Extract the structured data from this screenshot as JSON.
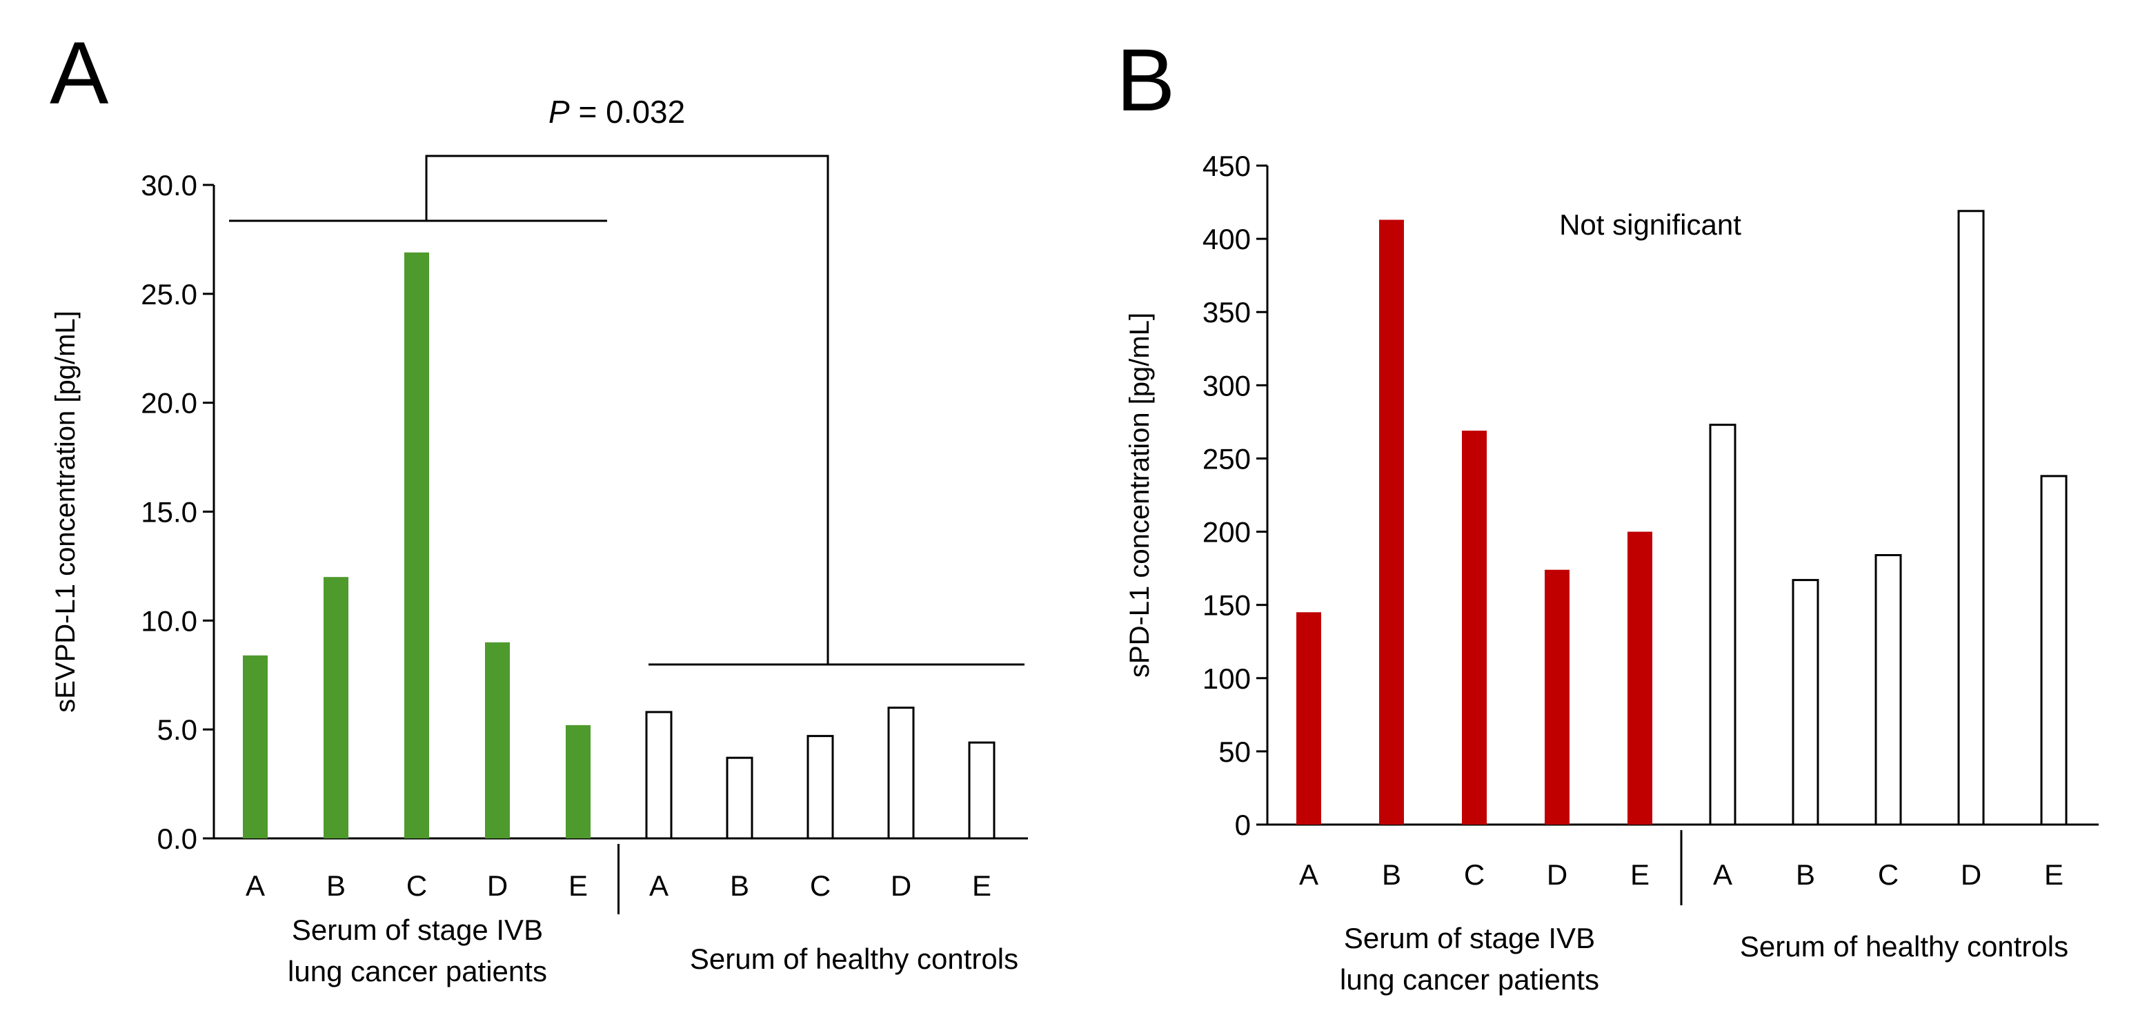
{
  "panels": {
    "a": {
      "letter": "A"
    },
    "b": {
      "letter": "B"
    }
  },
  "chart_data": [
    {
      "type": "bar",
      "panel": "A",
      "title": "",
      "xlabel": "",
      "ylabel": "sEVPD-L1 concentration [pg/mL]",
      "ylim": [
        0,
        30
      ],
      "yticks": [
        "0.0",
        "5.0",
        "10.0",
        "15.0",
        "20.0",
        "25.0",
        "30.0"
      ],
      "grid": false,
      "groups": [
        {
          "label_lines": [
            "Serum of stage IVB",
            "lung cancer patients"
          ],
          "categories": [
            "A",
            "B",
            "C",
            "D",
            "E"
          ],
          "values": [
            8.4,
            12.0,
            26.9,
            9.0,
            5.2
          ],
          "fill": "#4E9A2C",
          "stroke": "#4E9A2C"
        },
        {
          "label_lines": [
            "Serum of healthy controls"
          ],
          "categories": [
            "A",
            "B",
            "C",
            "D",
            "E"
          ],
          "values": [
            5.8,
            3.7,
            4.7,
            6.0,
            4.4
          ],
          "fill": "#ffffff",
          "stroke": "#000000"
        }
      ],
      "annotation": {
        "p_label": "P",
        "p_value": " = 0.032"
      }
    },
    {
      "type": "bar",
      "panel": "B",
      "title": "",
      "xlabel": "",
      "ylabel": "sPD-L1 concentration [pg/mL]",
      "ylim": [
        0,
        450
      ],
      "yticks": [
        "0",
        "50",
        "100",
        "150",
        "200",
        "250",
        "300",
        "350",
        "400",
        "450"
      ],
      "grid": false,
      "groups": [
        {
          "label_lines": [
            "Serum of stage IVB",
            "lung cancer patients"
          ],
          "categories": [
            "A",
            "B",
            "C",
            "D",
            "E"
          ],
          "values": [
            145,
            413,
            269,
            174,
            200
          ],
          "fill": "#C00000",
          "stroke": "#C00000"
        },
        {
          "label_lines": [
            "Serum of healthy controls"
          ],
          "categories": [
            "A",
            "B",
            "C",
            "D",
            "E"
          ],
          "values": [
            273,
            167,
            184,
            419,
            238
          ],
          "fill": "#ffffff",
          "stroke": "#000000"
        }
      ],
      "annotation": {
        "text": "Not significant"
      }
    }
  ]
}
